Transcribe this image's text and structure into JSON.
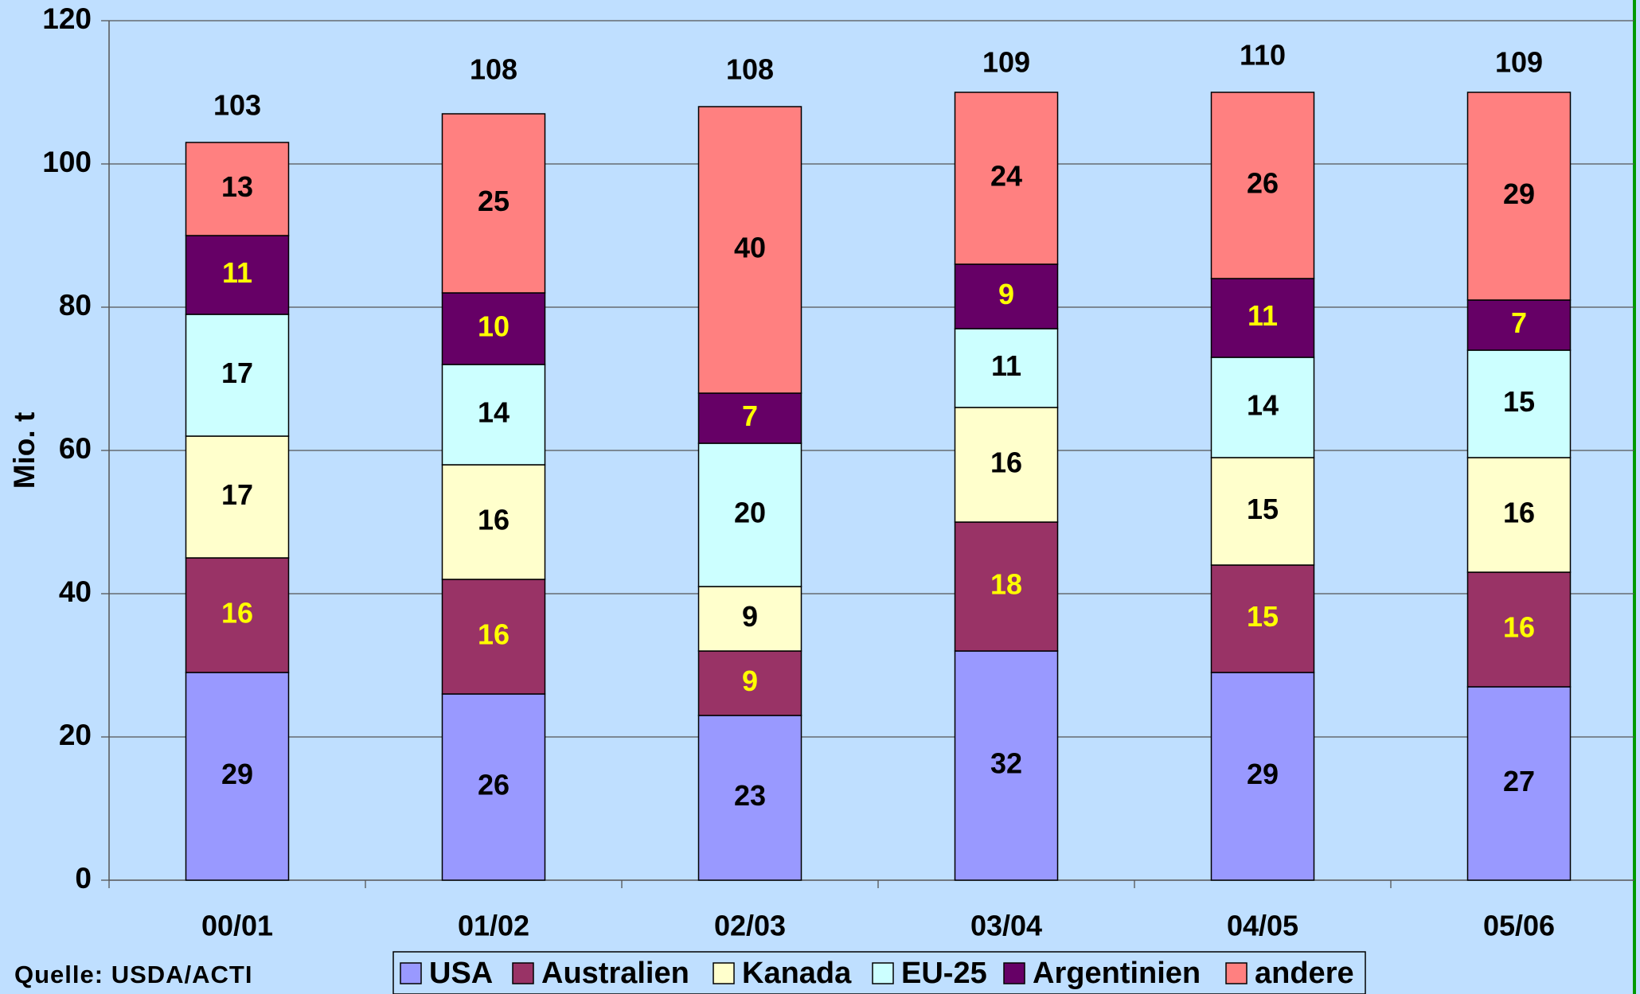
{
  "chart_data": {
    "type": "stacked_bar",
    "y_axis_label": "Mio. t",
    "source": "Quelle: USDA/ACTI",
    "categories": [
      "00/01",
      "01/02",
      "02/03",
      "03/04",
      "04/05",
      "05/06"
    ],
    "series": [
      {
        "name": "USA",
        "color": "#9999ff",
        "label_color": "#000000",
        "values": [
          29,
          26,
          23,
          32,
          29,
          27
        ]
      },
      {
        "name": "Australien",
        "color": "#993366",
        "label_color": "#ffff00",
        "values": [
          16,
          16,
          9,
          18,
          15,
          16
        ]
      },
      {
        "name": "Kanada",
        "color": "#ffffcc",
        "label_color": "#000000",
        "values": [
          17,
          16,
          9,
          16,
          15,
          16
        ]
      },
      {
        "name": "EU-25",
        "color": "#ccffff",
        "label_color": "#000000",
        "values": [
          17,
          14,
          20,
          11,
          14,
          15
        ]
      },
      {
        "name": "Argentinien",
        "color": "#660066",
        "label_color": "#ffff00",
        "values": [
          11,
          10,
          7,
          9,
          11,
          7
        ]
      },
      {
        "name": "andere",
        "color": "#ff8080",
        "label_color": "#000000",
        "values": [
          13,
          25,
          40,
          24,
          26,
          29
        ]
      }
    ],
    "totals": [
      103,
      108,
      108,
      109,
      110,
      109
    ],
    "ylim": [
      0,
      120
    ],
    "yticks": [
      0,
      20,
      40,
      60,
      80,
      100,
      120
    ],
    "grid": true
  }
}
